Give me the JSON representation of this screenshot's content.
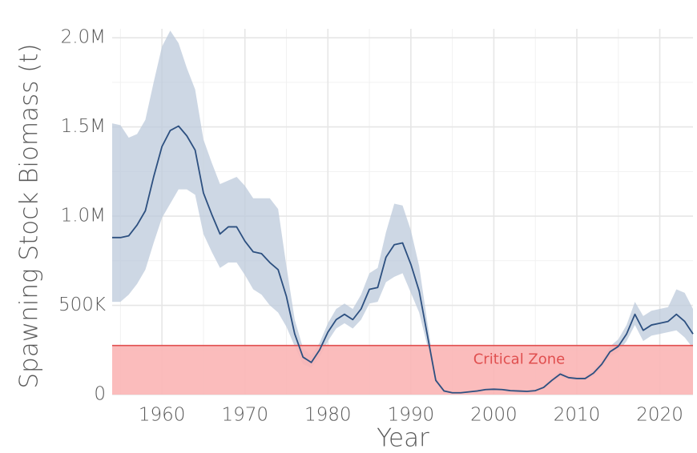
{
  "chart_data": {
    "type": "line_band",
    "y_axis_label": "Spawning Stock Biomass (t)",
    "x_axis_label": "Year",
    "x": [
      1954,
      1955,
      1956,
      1957,
      1958,
      1959,
      1960,
      1961,
      1962,
      1963,
      1964,
      1965,
      1966,
      1967,
      1968,
      1969,
      1970,
      1971,
      1972,
      1973,
      1974,
      1975,
      1976,
      1977,
      1978,
      1979,
      1980,
      1981,
      1982,
      1983,
      1984,
      1985,
      1986,
      1987,
      1988,
      1989,
      1990,
      1991,
      1992,
      1993,
      1994,
      1995,
      1996,
      1997,
      1998,
      1999,
      2000,
      2001,
      2002,
      2003,
      2004,
      2005,
      2006,
      2007,
      2008,
      2009,
      2010,
      2011,
      2012,
      2013,
      2014,
      2015,
      2016,
      2017,
      2018,
      2019,
      2020,
      2021,
      2022,
      2023,
      2024
    ],
    "values": [
      880000,
      880000,
      890000,
      950000,
      1030000,
      1220000,
      1390000,
      1480000,
      1505000,
      1450000,
      1370000,
      1130000,
      1010000,
      900000,
      940000,
      940000,
      860000,
      800000,
      790000,
      740000,
      700000,
      550000,
      340000,
      210000,
      180000,
      250000,
      350000,
      420000,
      450000,
      420000,
      480000,
      590000,
      600000,
      770000,
      840000,
      850000,
      730000,
      580000,
      330000,
      80000,
      20000,
      10000,
      10000,
      15000,
      20000,
      28000,
      30000,
      28000,
      22000,
      20000,
      18000,
      22000,
      40000,
      80000,
      115000,
      95000,
      90000,
      90000,
      120000,
      170000,
      240000,
      270000,
      340000,
      450000,
      360000,
      390000,
      400000,
      410000,
      450000,
      410000,
      340000
    ],
    "upper": [
      1520000,
      1510000,
      1440000,
      1460000,
      1540000,
      1750000,
      1950000,
      2040000,
      1970000,
      1830000,
      1710000,
      1430000,
      1300000,
      1180000,
      1200000,
      1220000,
      1170000,
      1100000,
      1100000,
      1100000,
      1040000,
      720000,
      420000,
      260000,
      220000,
      290000,
      400000,
      480000,
      510000,
      480000,
      560000,
      680000,
      710000,
      910000,
      1070000,
      1060000,
      920000,
      720000,
      400000,
      100000,
      30000,
      15000,
      15000,
      20000,
      28000,
      35000,
      38000,
      35000,
      30000,
      28000,
      25000,
      30000,
      50000,
      95000,
      135000,
      110000,
      105000,
      105000,
      140000,
      195000,
      270000,
      310000,
      390000,
      520000,
      440000,
      470000,
      480000,
      490000,
      590000,
      570000,
      480000
    ],
    "lower": [
      520000,
      520000,
      560000,
      620000,
      700000,
      850000,
      990000,
      1070000,
      1150000,
      1150000,
      1120000,
      900000,
      800000,
      710000,
      740000,
      740000,
      670000,
      590000,
      560000,
      500000,
      460000,
      380000,
      270000,
      170000,
      150000,
      210000,
      300000,
      370000,
      400000,
      370000,
      420000,
      510000,
      520000,
      630000,
      660000,
      680000,
      570000,
      460000,
      270000,
      65000,
      12000,
      6000,
      6000,
      10000,
      14000,
      22000,
      24000,
      22000,
      16000,
      14000,
      12000,
      16000,
      32000,
      68000,
      100000,
      82000,
      78000,
      78000,
      102000,
      150000,
      215000,
      240000,
      300000,
      390000,
      300000,
      330000,
      340000,
      350000,
      360000,
      320000,
      260000
    ],
    "color": "#2d5080",
    "band_color": "#bccadb",
    "threshold": 275000,
    "threshold_label": "Critical Zone",
    "threshold_color": "#e04f4f",
    "threshold_fill": "#fbb5b5",
    "xlim": [
      1954,
      2024
    ],
    "ylim": [
      0,
      2050000
    ],
    "xticks": [
      1960,
      1970,
      1980,
      1990,
      2000,
      2010,
      2020
    ],
    "yticks": [
      0,
      {
        "value": 500000,
        "label": "500K"
      },
      {
        "value": 1000000,
        "label": "1.0M"
      },
      {
        "value": 1500000,
        "label": "1.5M"
      },
      {
        "value": 2000000,
        "label": "2.0M"
      }
    ],
    "x_minor_ticks": [
      1955,
      1965,
      1975,
      1985,
      1995,
      2005,
      2015
    ],
    "y_minor_ticks": [
      250000,
      750000,
      1250000,
      1750000
    ],
    "grid": true
  }
}
